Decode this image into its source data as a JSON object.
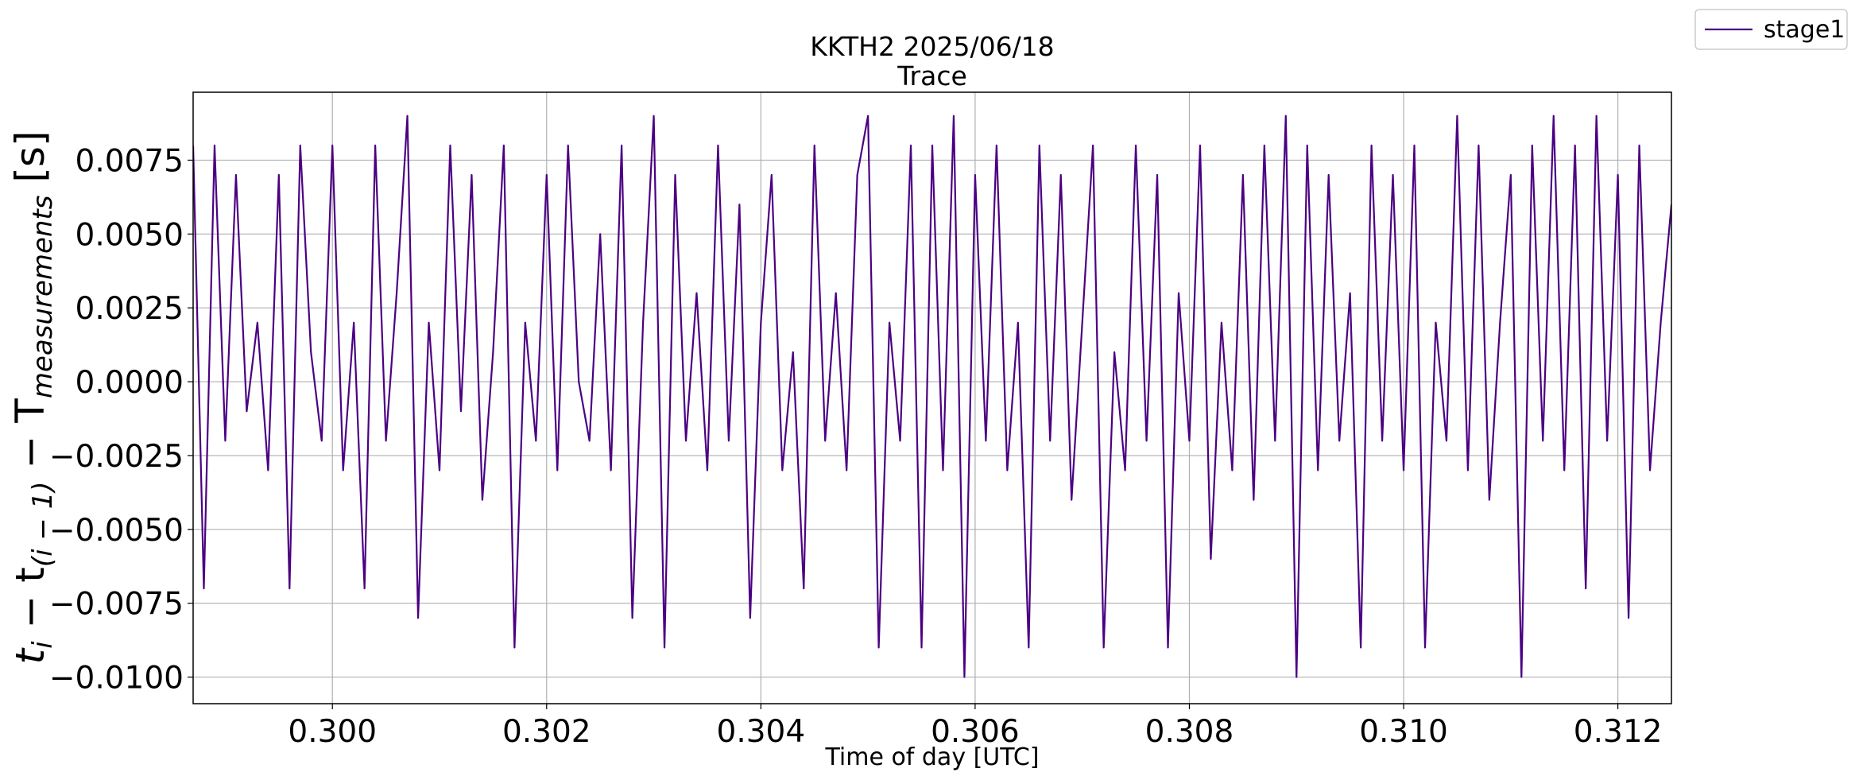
{
  "chart_data": {
    "type": "line",
    "title": "KKTH2 2025/06/18",
    "subtitle": "Trace",
    "xlabel": "Time of day [UTC]",
    "ylabel_parts": [
      "t",
      "i",
      " − t",
      "(i − 1)",
      " − T",
      "measurements",
      " [s]"
    ],
    "legend": "upper right outside",
    "grid": true,
    "xlim": [
      0.2987,
      0.3125
    ],
    "ylim": [
      -0.0109,
      0.0098
    ],
    "xticks": [
      {
        "value": 0.3,
        "label": "0.300"
      },
      {
        "value": 0.302,
        "label": "0.302"
      },
      {
        "value": 0.304,
        "label": "0.304"
      },
      {
        "value": 0.306,
        "label": "0.306"
      },
      {
        "value": 0.308,
        "label": "0.308"
      },
      {
        "value": 0.31,
        "label": "0.310"
      },
      {
        "value": 0.312,
        "label": "0.312"
      }
    ],
    "yticks": [
      {
        "value": -0.01,
        "label": "−0.0100"
      },
      {
        "value": -0.0075,
        "label": "−0.0075"
      },
      {
        "value": -0.005,
        "label": "−0.0050"
      },
      {
        "value": -0.0025,
        "label": "−0.0025"
      },
      {
        "value": 0,
        "label": "0.0000"
      },
      {
        "value": 0.0025,
        "label": "0.0025"
      },
      {
        "value": 0.005,
        "label": "0.0050"
      },
      {
        "value": 0.0075,
        "label": "0.0075"
      }
    ],
    "x": [
      0.2987,
      0.2988,
      0.2989,
      0.299,
      0.2991,
      0.2992,
      0.2993,
      0.2994,
      0.2995,
      0.2996,
      0.2997,
      0.2998,
      0.2999,
      0.3,
      0.3001,
      0.3002,
      0.3003,
      0.3004,
      0.3005,
      0.3006,
      0.3007,
      0.3008,
      0.3009,
      0.301,
      0.3011,
      0.3012,
      0.3013,
      0.3014,
      0.3015,
      0.3016,
      0.3017,
      0.3018,
      0.3019,
      0.302,
      0.3021,
      0.3022,
      0.3023,
      0.3024,
      0.3025,
      0.3026,
      0.3027,
      0.3028,
      0.3029,
      0.303,
      0.3031,
      0.3032,
      0.3033,
      0.3034,
      0.3035,
      0.3036,
      0.3037,
      0.3038,
      0.3039,
      0.304,
      0.3041,
      0.3042,
      0.3043,
      0.3044,
      0.3045,
      0.3046,
      0.3047,
      0.3048,
      0.3049,
      0.305,
      0.3051,
      0.3052,
      0.3053,
      0.3054,
      0.3055,
      0.3056,
      0.3057,
      0.3058,
      0.3059,
      0.306,
      0.3061,
      0.3062,
      0.3063,
      0.3064,
      0.3065,
      0.3066,
      0.3067,
      0.3068,
      0.3069,
      0.307,
      0.3071,
      0.3072,
      0.3073,
      0.3074,
      0.3075,
      0.3076,
      0.3077,
      0.3078,
      0.3079,
      0.308,
      0.3081,
      0.3082,
      0.3083,
      0.3084,
      0.3085,
      0.3086,
      0.3087,
      0.3088,
      0.3089,
      0.309,
      0.3091,
      0.3092,
      0.3093,
      0.3094,
      0.3095,
      0.3096,
      0.3097,
      0.3098,
      0.3099,
      0.31,
      0.3101,
      0.3102,
      0.3103,
      0.3104,
      0.3105,
      0.3106,
      0.3107,
      0.3108,
      0.3109,
      0.311,
      0.3111,
      0.3112,
      0.3113,
      0.3114,
      0.3115,
      0.3116,
      0.3117,
      0.3118,
      0.3119,
      0.312,
      0.3121,
      0.3122,
      0.3123,
      0.3124,
      0.3125
    ],
    "series": [
      {
        "name": "stage1",
        "color": "#4b0082",
        "values": [
          0.008,
          -0.007,
          0.008,
          -0.002,
          0.007,
          -0.001,
          0.002,
          -0.003,
          0.007,
          -0.007,
          0.008,
          0.001,
          -0.002,
          0.008,
          -0.003,
          0.002,
          -0.007,
          0.008,
          -0.002,
          0.003,
          0.009,
          -0.008,
          0.002,
          -0.003,
          0.008,
          -0.001,
          0.007,
          -0.004,
          0.001,
          0.008,
          -0.009,
          0.002,
          -0.002,
          0.007,
          -0.003,
          0.008,
          0.0,
          -0.002,
          0.005,
          -0.003,
          0.008,
          -0.008,
          0.002,
          0.009,
          -0.009,
          0.007,
          -0.002,
          0.003,
          -0.003,
          0.008,
          -0.002,
          0.006,
          -0.008,
          0.002,
          0.007,
          -0.003,
          0.001,
          -0.007,
          0.008,
          -0.002,
          0.003,
          -0.003,
          0.007,
          0.009,
          -0.009,
          0.002,
          -0.002,
          0.008,
          -0.009,
          0.008,
          -0.003,
          0.009,
          -0.01,
          0.007,
          -0.002,
          0.008,
          -0.003,
          0.002,
          -0.009,
          0.008,
          -0.002,
          0.007,
          -0.004,
          0.002,
          0.008,
          -0.009,
          0.001,
          -0.003,
          0.008,
          -0.002,
          0.007,
          -0.009,
          0.003,
          -0.002,
          0.008,
          -0.006,
          0.002,
          -0.003,
          0.007,
          -0.004,
          0.008,
          -0.002,
          0.009,
          -0.01,
          0.008,
          -0.003,
          0.007,
          -0.002,
          0.003,
          -0.009,
          0.008,
          -0.002,
          0.007,
          -0.003,
          0.008,
          -0.009,
          0.002,
          -0.002,
          0.009,
          -0.003,
          0.008,
          -0.004,
          0.002,
          0.007,
          -0.01,
          0.008,
          -0.002,
          0.009,
          -0.003,
          0.008,
          -0.007,
          0.009,
          -0.002,
          0.007,
          -0.008,
          0.008,
          -0.003,
          0.002,
          0.006
        ]
      }
    ]
  }
}
